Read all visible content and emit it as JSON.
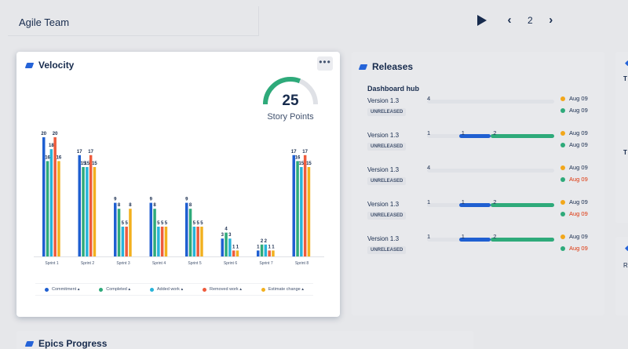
{
  "header": {
    "team_name": "Agile Team",
    "page_number": "2",
    "prev_label": "‹",
    "next_label": "›"
  },
  "velocity": {
    "title": "Velocity",
    "more_label": "•••",
    "story_points": "25",
    "story_points_label": "Story Points",
    "gauge_fraction": 0.62,
    "colors": {
      "commitment": "#1f5fd1",
      "completed": "#2eaa7a",
      "added": "#27b3d9",
      "removed": "#ee5b3c",
      "estimate": "#f2b01e"
    },
    "legend": [
      {
        "label": "Commitment",
        "arrow": "▴",
        "color": "#1f5fd1"
      },
      {
        "label": "Completed",
        "arrow": "▴",
        "color": "#2eaa7a"
      },
      {
        "label": "Added work",
        "arrow": "▴",
        "color": "#27b3d9"
      },
      {
        "label": "Removed work",
        "arrow": "▴",
        "color": "#ee5b3c"
      },
      {
        "label": "Estimate change",
        "arrow": "▴",
        "color": "#f2b01e"
      }
    ]
  },
  "chart_data": {
    "type": "bar",
    "categories": [
      "Sprint 1",
      "Sprint 2",
      "Sprint 3",
      "Sprint 4",
      "Sprint 5",
      "Sprint 6",
      "Sprint 7",
      "Sprint 8"
    ],
    "series": [
      {
        "name": "Commitment",
        "values": [
          20,
          17,
          9,
          9,
          9,
          3,
          1,
          17
        ]
      },
      {
        "name": "Completed",
        "values": [
          16,
          15,
          8,
          8,
          8,
          4,
          2,
          16
        ]
      },
      {
        "name": "Added work",
        "values": [
          18,
          15,
          5,
          5,
          5,
          3,
          2,
          15
        ]
      },
      {
        "name": "Removed work",
        "values": [
          20,
          17,
          5,
          5,
          5,
          1,
          1,
          17
        ]
      },
      {
        "name": "Estimate change",
        "values": [
          16,
          15,
          8,
          5,
          5,
          1,
          1,
          15
        ]
      }
    ],
    "ylim": [
      0,
      20
    ],
    "grid": false,
    "legend": "bottom"
  },
  "releases": {
    "title": "Releases",
    "subtitle": "Dashboard hub",
    "items": [
      {
        "name": "Version 1.3",
        "badge": "UNRELEASED",
        "nums": [
          "4"
        ],
        "blue_frac": 0,
        "green_frac": 0,
        "date1": "Aug 09",
        "date1_color": "#172b4d",
        "date2": "Aug 09",
        "date2_color": "#172b4d"
      },
      {
        "name": "Version 1.3",
        "badge": "UNRELEASED",
        "nums": [
          "1",
          "1",
          "2"
        ],
        "blue_frac": 0.25,
        "green_frac": 0.5,
        "date1": "Aug 09",
        "date1_color": "#172b4d",
        "date2": "Aug 09",
        "date2_color": "#172b4d"
      },
      {
        "name": "Version 1.3",
        "badge": "UNRELEASED",
        "nums": [
          "4"
        ],
        "blue_frac": 0,
        "green_frac": 0,
        "date1": "Aug 09",
        "date1_color": "#172b4d",
        "date2": "Aug 09",
        "date2_color": "#de350b"
      },
      {
        "name": "Version 1.3",
        "badge": "UNRELEASED",
        "nums": [
          "1",
          "1",
          "2"
        ],
        "blue_frac": 0.25,
        "green_frac": 0.5,
        "date1": "Aug 09",
        "date1_color": "#172b4d",
        "date2": "Aug 09",
        "date2_color": "#de350b"
      },
      {
        "name": "Version 1.3",
        "badge": "UNRELEASED",
        "nums": [
          "1",
          "1",
          "2"
        ],
        "blue_frac": 0.25,
        "green_frac": 0.5,
        "date1": "Aug 09",
        "date1_color": "#172b4d",
        "date2": "Aug 09",
        "date2_color": "#de350b"
      }
    ],
    "date_dot1": "#f2a71b",
    "date_dot2": "#2eaa7a"
  },
  "side": {
    "t1": "T",
    "t2": "T",
    "r": "R"
  },
  "epics": {
    "title": "Epics Progress"
  }
}
